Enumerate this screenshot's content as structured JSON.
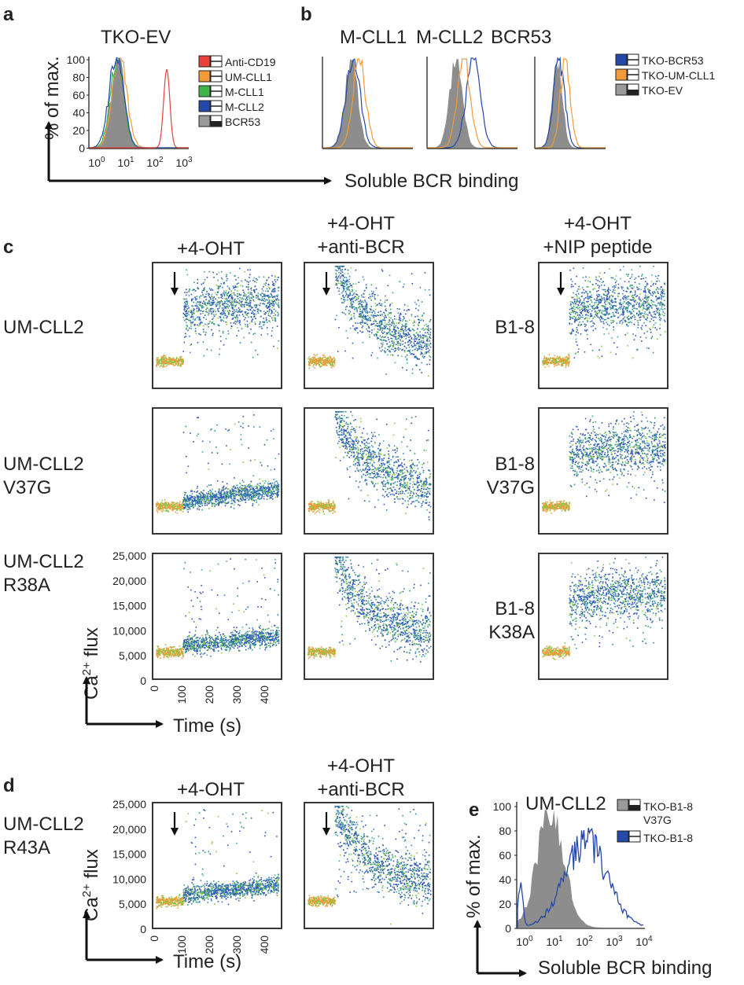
{
  "figure": {
    "panel_a": {
      "letter": "a",
      "title": "TKO-EV",
      "ylabel": "% of max.",
      "yticks": [
        "100",
        "80",
        "60",
        "40",
        "20",
        "0"
      ],
      "xticks": [
        {
          "base": "10",
          "exp": "0"
        },
        {
          "base": "10",
          "exp": "1"
        },
        {
          "base": "10",
          "exp": "2"
        },
        {
          "base": "10",
          "exp": "3"
        }
      ],
      "legend": [
        {
          "label": "Anti-CD19",
          "color": "#e8413c"
        },
        {
          "label": "UM-CLL1",
          "color": "#f39a3a"
        },
        {
          "label": "M-CLL1",
          "color": "#3fb54a"
        },
        {
          "label": "M-CLL2",
          "color": "#2448a8"
        },
        {
          "label": "BCR53",
          "color": "#9a9a9a"
        }
      ]
    },
    "panel_b": {
      "letter": "b",
      "titles": [
        "M-CLL1",
        "M-CLL2",
        "BCR53"
      ],
      "legend": [
        {
          "label": "TKO-BCR53",
          "color": "#2448a8"
        },
        {
          "label": "TKO-UM-CLL1",
          "color": "#f39a3a"
        },
        {
          "label": "TKO-EV",
          "color": "#9a9a9a"
        }
      ]
    },
    "ab_xlabel": "Soluble BCR binding",
    "panel_c": {
      "letter": "c",
      "col_titles": [
        [
          "+4-OHT"
        ],
        [
          "+4-OHT",
          "+anti-BCR"
        ],
        [
          "+4-OHT",
          "+NIP peptide"
        ]
      ],
      "row_labels_left": [
        [
          "UM-CLL2"
        ],
        [
          "UM-CLL2",
          "V37G"
        ],
        [
          "UM-CLL2",
          "R38A"
        ]
      ],
      "row_labels_right": [
        [
          "B1-8"
        ],
        [
          "B1-8",
          "V37G"
        ],
        [
          "B1-8",
          "K38A"
        ]
      ],
      "yticks": [
        "25,000",
        "20,000",
        "15,000",
        "10,000",
        "5,000",
        "0"
      ],
      "xticks": [
        "0",
        "100",
        "200",
        "300",
        "400"
      ],
      "ylabel_prefix": "Ca",
      "ylabel_sup": "2+",
      "ylabel_suffix": " flux",
      "xlabel": "Time (s)"
    },
    "panel_d": {
      "letter": "d",
      "col_titles": [
        [
          "+4-OHT"
        ],
        [
          "+4-OHT",
          "+anti-BCR"
        ]
      ],
      "row_label": [
        "UM-CLL2",
        "R43A"
      ],
      "yticks": [
        "25,000",
        "20,000",
        "15,000",
        "10,000",
        "5,000",
        "0"
      ],
      "xticks": [
        "0",
        "100",
        "200",
        "300",
        "400"
      ],
      "xlabel": "Time (s)"
    },
    "panel_e": {
      "letter": "e",
      "title": "UM-CLL2",
      "ylabel": "% of max.",
      "yticks": [
        "100",
        "80",
        "60",
        "40",
        "20",
        "0"
      ],
      "xticks": [
        {
          "base": "10",
          "exp": "0"
        },
        {
          "base": "10",
          "exp": "1"
        },
        {
          "base": "10",
          "exp": "2"
        },
        {
          "base": "10",
          "exp": "3"
        },
        {
          "base": "10",
          "exp": "4"
        }
      ],
      "legend": [
        {
          "label": "TKO-B1-8",
          "label2": "V37G",
          "color": "#9a9a9a"
        },
        {
          "label": "TKO-B1-8",
          "label2": "",
          "color": "#2448a8"
        }
      ],
      "xlabel": "Soluble BCR binding"
    }
  }
}
